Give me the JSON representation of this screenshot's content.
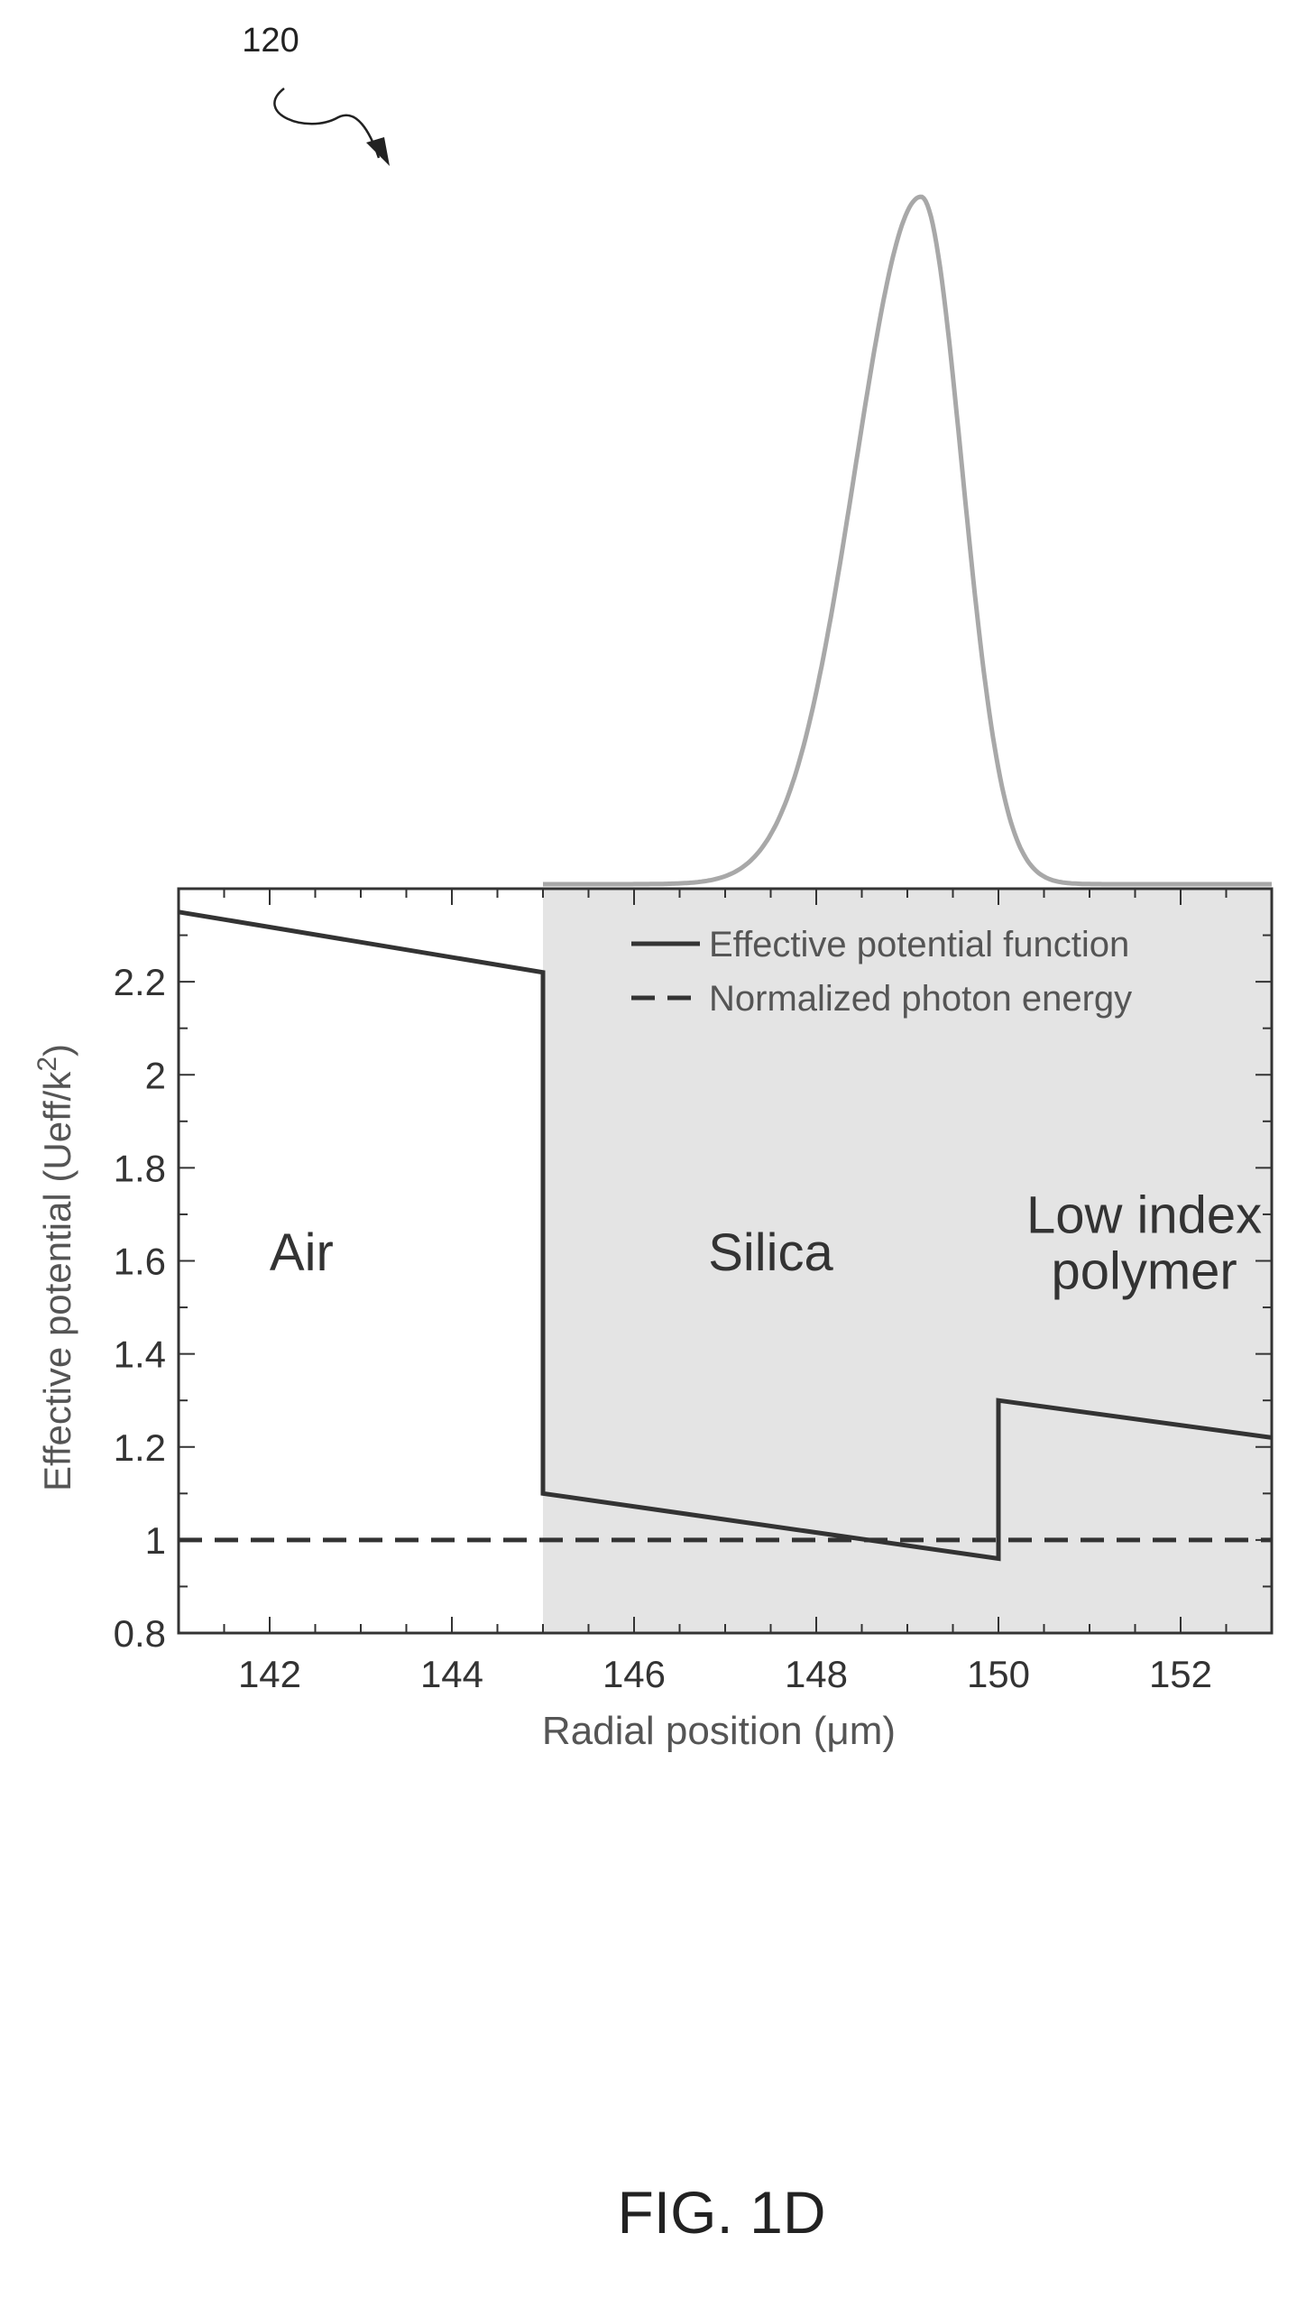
{
  "figure": {
    "ref_numeral": "120",
    "caption": "FIG. 1D"
  },
  "chart_data": {
    "type": "line",
    "xlabel": "Radial position (μm)",
    "ylabel": "Effective potential (Ueff/k",
    "ylabel_superscript": "2",
    "ylabel_close": ")",
    "xlim": [
      141,
      153
    ],
    "ylim": [
      0.8,
      2.4
    ],
    "xticks": [
      142,
      144,
      146,
      148,
      150,
      152
    ],
    "yticks": [
      0.8,
      1,
      1.2,
      1.4,
      1.6,
      1.8,
      2,
      2.2
    ],
    "grid": false,
    "legend_position": "top-right",
    "regions": [
      {
        "label": "Air",
        "x_start": 141,
        "x_end": 145,
        "fill": "#ffffff"
      },
      {
        "label": "Silica",
        "x_start": 145,
        "x_end": 150,
        "fill": "#e4e4e4"
      },
      {
        "label_lines": [
          "Low index",
          "polymer"
        ],
        "x_start": 150,
        "x_end": 153,
        "fill": "#e4e4e4"
      }
    ],
    "series": [
      {
        "name": "Effective potential function",
        "style": "solid",
        "color": "#333333",
        "points": [
          [
            141,
            2.35
          ],
          [
            145,
            2.22
          ],
          [
            145,
            1.1
          ],
          [
            150,
            0.96
          ],
          [
            150,
            1.3
          ],
          [
            153,
            1.22
          ]
        ]
      },
      {
        "name": "Normalized photon energy",
        "style": "dashed",
        "color": "#333333",
        "points": [
          [
            141,
            1.0
          ],
          [
            153,
            1.0
          ]
        ]
      }
    ],
    "mode_profile": {
      "color": "#a8a8a8",
      "baseline": 0,
      "peak_x": 149.15,
      "peak_amplitude": 1,
      "sigma_left": 0.72,
      "sigma_right": 0.45,
      "x_start": 145,
      "x_end": 153
    }
  }
}
